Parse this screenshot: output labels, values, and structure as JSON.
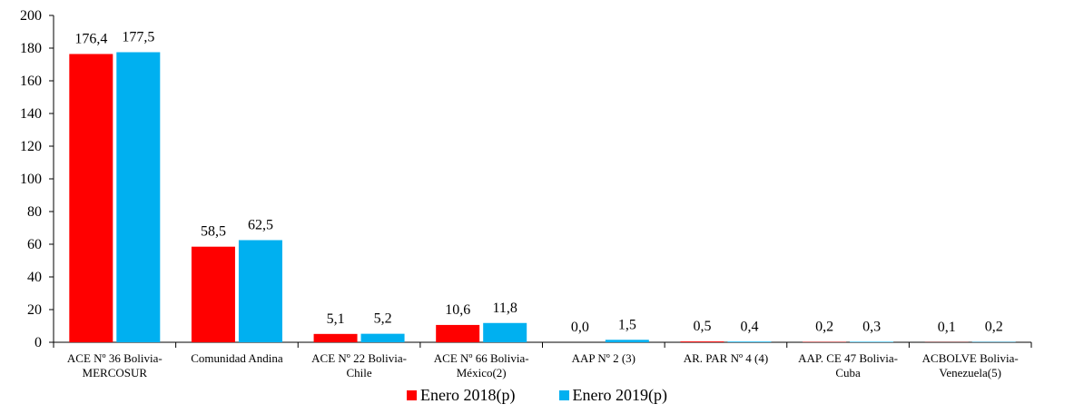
{
  "chart_data": {
    "type": "bar",
    "categories": [
      [
        "ACE Nº 36 Bolivia-",
        "MERCOSUR"
      ],
      [
        "Comunidad Andina"
      ],
      [
        "ACE Nº 22  Bolivia-",
        "Chile"
      ],
      [
        "ACE Nº 66  Bolivia-",
        "México(2)"
      ],
      [
        "AAP Nº 2 (3)"
      ],
      [
        "AR. PAR Nº 4 (4)"
      ],
      [
        "AAP. CE 47 Bolivia-",
        "Cuba"
      ],
      [
        "ACBOLVE Bolivia-",
        "Venezuela(5)"
      ]
    ],
    "series": [
      {
        "name": "Enero 2018(p)",
        "color": "#ff0000",
        "values": [
          176.4,
          58.5,
          5.1,
          10.6,
          0.0,
          0.5,
          0.2,
          0.1
        ],
        "labels": [
          "176,4",
          "58,5",
          "5,1",
          "10,6",
          "0,0",
          "0,5",
          "0,2",
          "0,1"
        ]
      },
      {
        "name": "Enero 2019(p)",
        "color": "#00b0f0",
        "values": [
          177.5,
          62.5,
          5.2,
          11.8,
          1.5,
          0.4,
          0.3,
          0.2
        ],
        "labels": [
          "177,5",
          "62,5",
          "5,2",
          "11,8",
          "1,5",
          "0,4",
          "0,3",
          "0,2"
        ]
      }
    ],
    "yticks": [
      0,
      20,
      40,
      60,
      80,
      100,
      120,
      140,
      160,
      180,
      200
    ],
    "ylim": [
      0,
      200
    ],
    "grid": false,
    "legend_position": "bottom"
  }
}
